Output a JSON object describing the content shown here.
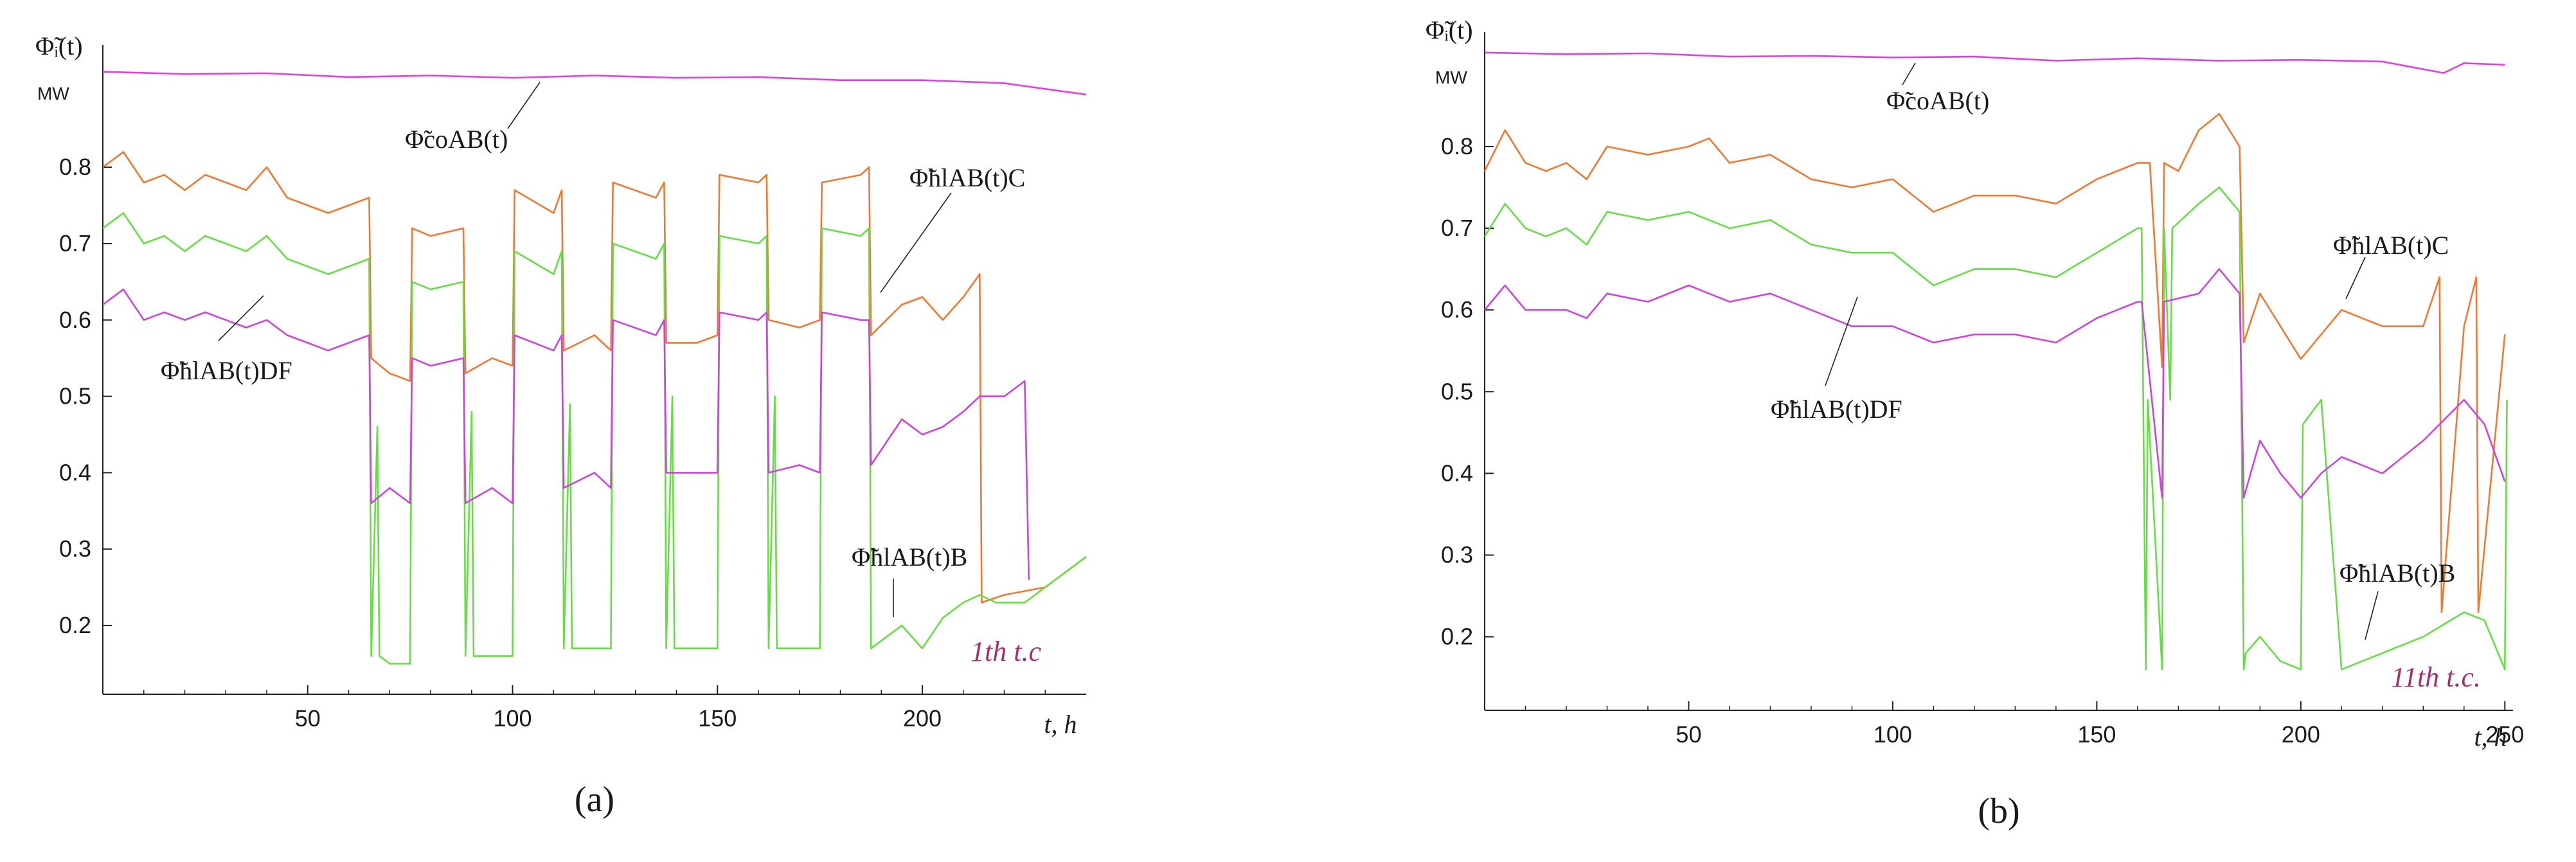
{
  "chart_data": [
    {
      "type": "line",
      "panel": "a",
      "caption": "(a)",
      "ylabel": "Φ̃ᵢ(t)",
      "yunit": "MW",
      "xlabel": "t,  h",
      "cycle_label": "1th t.c",
      "xlim": [
        0,
        240
      ],
      "ylim": [
        0.11,
        0.96
      ],
      "xticks": [
        50,
        100,
        150,
        200
      ],
      "yticks": [
        0.2,
        0.3,
        0.4,
        0.5,
        0.6,
        0.7,
        0.8
      ],
      "series": [
        {
          "name": "Φ̃coAB(t)",
          "color": "#e040e0",
          "x": [
            0,
            20,
            40,
            60,
            80,
            100,
            120,
            140,
            160,
            180,
            200,
            220,
            240
          ],
          "y": [
            0.925,
            0.922,
            0.923,
            0.918,
            0.92,
            0.917,
            0.92,
            0.917,
            0.918,
            0.914,
            0.914,
            0.91,
            0.895
          ]
        },
        {
          "name": "Φ̃hlAB(t)C",
          "color": "#f07830",
          "x": [
            0,
            5,
            10,
            15,
            20,
            25,
            30,
            35,
            40,
            45,
            50,
            55,
            60,
            65,
            65.5,
            70,
            75,
            75.5,
            80,
            88,
            88.5,
            95,
            100,
            100.5,
            110,
            112,
            112.5,
            120,
            124,
            124.5,
            135,
            137,
            137.5,
            145,
            150,
            150.5,
            160,
            162,
            162.5,
            170,
            175,
            175.5,
            185,
            187,
            187.5,
            195,
            200,
            205,
            210,
            214,
            214.5,
            220,
            230,
            240
          ],
          "y": [
            0.8,
            0.82,
            0.78,
            0.79,
            0.77,
            0.79,
            0.78,
            0.77,
            0.8,
            0.76,
            0.75,
            0.74,
            0.75,
            0.76,
            0.55,
            0.53,
            0.52,
            0.72,
            0.71,
            0.72,
            0.53,
            0.55,
            0.54,
            0.77,
            0.74,
            0.77,
            0.56,
            0.58,
            0.56,
            0.78,
            0.76,
            0.78,
            0.57,
            0.57,
            0.58,
            0.79,
            0.78,
            0.79,
            0.6,
            0.59,
            0.6,
            0.78,
            0.79,
            0.8,
            0.58,
            0.62,
            0.63,
            0.6,
            0.63,
            0.66,
            0.23,
            0.24,
            0.25,
            0.29
          ]
        },
        {
          "name": "Φ̃hlAB(t)B",
          "color": "#66dd44",
          "x": [
            0,
            5,
            10,
            15,
            20,
            25,
            30,
            35,
            40,
            45,
            50,
            55,
            60,
            65,
            65.5,
            67,
            67.5,
            70,
            75,
            75.5,
            80,
            88,
            88.5,
            90,
            90.5,
            95,
            100,
            100.5,
            110,
            112,
            112.5,
            114,
            114.5,
            120,
            124,
            124.5,
            135,
            137,
            137.5,
            139,
            139.5,
            145,
            150,
            150.5,
            160,
            162,
            162.5,
            164,
            164.5,
            170,
            175,
            175.5,
            185,
            187,
            187.5,
            195,
            200,
            205,
            210,
            214,
            218,
            225,
            230,
            240
          ],
          "y": [
            0.72,
            0.74,
            0.7,
            0.71,
            0.69,
            0.71,
            0.7,
            0.69,
            0.71,
            0.68,
            0.67,
            0.66,
            0.67,
            0.68,
            0.16,
            0.46,
            0.16,
            0.15,
            0.15,
            0.65,
            0.64,
            0.65,
            0.16,
            0.48,
            0.16,
            0.16,
            0.16,
            0.69,
            0.66,
            0.69,
            0.17,
            0.49,
            0.17,
            0.17,
            0.17,
            0.7,
            0.68,
            0.7,
            0.17,
            0.5,
            0.17,
            0.17,
            0.17,
            0.71,
            0.7,
            0.71,
            0.17,
            0.5,
            0.17,
            0.17,
            0.17,
            0.72,
            0.71,
            0.72,
            0.17,
            0.2,
            0.17,
            0.21,
            0.23,
            0.24,
            0.23,
            0.23,
            0.25,
            0.29
          ]
        },
        {
          "name": "Φ̃hlAB(t)DF",
          "color": "#cc44dd",
          "x": [
            0,
            5,
            10,
            15,
            20,
            25,
            30,
            35,
            40,
            45,
            50,
            55,
            60,
            65,
            65.5,
            70,
            75,
            75.5,
            80,
            88,
            88.5,
            95,
            100,
            100.5,
            110,
            112,
            112.5,
            120,
            124,
            124.5,
            135,
            137,
            137.5,
            145,
            150,
            150.5,
            160,
            162,
            162.5,
            170,
            175,
            175.5,
            185,
            187,
            187.5,
            195,
            200,
            205,
            210,
            214,
            220,
            225,
            226
          ],
          "y": [
            0.62,
            0.64,
            0.6,
            0.61,
            0.6,
            0.61,
            0.6,
            0.59,
            0.6,
            0.58,
            0.57,
            0.56,
            0.57,
            0.58,
            0.36,
            0.38,
            0.36,
            0.55,
            0.54,
            0.55,
            0.36,
            0.38,
            0.36,
            0.58,
            0.56,
            0.58,
            0.38,
            0.4,
            0.38,
            0.6,
            0.58,
            0.6,
            0.4,
            0.4,
            0.4,
            0.61,
            0.6,
            0.61,
            0.4,
            0.41,
            0.4,
            0.61,
            0.6,
            0.6,
            0.41,
            0.47,
            0.45,
            0.46,
            0.48,
            0.5,
            0.5,
            0.52,
            0.26
          ]
        }
      ],
      "annotations": [
        {
          "text": "Φ̃coAB(t)",
          "series": "Φ̃coAB(t)"
        },
        {
          "text": "Φ̃hlAB(t)C",
          "series": "Φ̃hlAB(t)C"
        },
        {
          "text": "Φ̃hlAB(t)DF",
          "series": "Φ̃hlAB(t)DF"
        },
        {
          "text": "Φ̃hlAB(t)B",
          "series": "Φ̃hlAB(t)B"
        }
      ]
    },
    {
      "type": "line",
      "panel": "b",
      "caption": "(b)",
      "ylabel": "Φ̃ᵢ(t)",
      "yunit": "MW",
      "xlabel": "t,  h",
      "cycle_label": "11th t.c.",
      "xlim": [
        0,
        252
      ],
      "ylim": [
        0.11,
        0.94
      ],
      "xticks": [
        50,
        100,
        150,
        200,
        250
      ],
      "yticks": [
        0.2,
        0.3,
        0.4,
        0.5,
        0.6,
        0.7,
        0.8
      ],
      "series": [
        {
          "name": "Φ̃coAB(t)",
          "color": "#e040e0",
          "x": [
            0,
            20,
            40,
            60,
            80,
            100,
            120,
            140,
            160,
            180,
            200,
            220,
            235,
            240,
            250
          ],
          "y": [
            0.915,
            0.913,
            0.914,
            0.91,
            0.911,
            0.909,
            0.91,
            0.905,
            0.908,
            0.905,
            0.906,
            0.904,
            0.89,
            0.902,
            0.9
          ]
        },
        {
          "name": "Φ̃hlAB(t)C",
          "color": "#f07830",
          "x": [
            0,
            5,
            10,
            15,
            20,
            25,
            30,
            40,
            50,
            55,
            60,
            70,
            80,
            90,
            100,
            110,
            120,
            130,
            140,
            150,
            160,
            161,
            163,
            166,
            166.5,
            170,
            175,
            180,
            185,
            186,
            190,
            195,
            200,
            210,
            220,
            230,
            234,
            234.5,
            240,
            243,
            243.5,
            250
          ],
          "y": [
            0.77,
            0.82,
            0.78,
            0.77,
            0.78,
            0.76,
            0.8,
            0.79,
            0.8,
            0.81,
            0.78,
            0.79,
            0.76,
            0.75,
            0.76,
            0.72,
            0.74,
            0.74,
            0.73,
            0.76,
            0.78,
            0.78,
            0.78,
            0.53,
            0.78,
            0.77,
            0.82,
            0.84,
            0.8,
            0.56,
            0.62,
            0.58,
            0.54,
            0.6,
            0.58,
            0.58,
            0.64,
            0.23,
            0.58,
            0.64,
            0.23,
            0.57
          ]
        },
        {
          "name": "Φ̃hlAB(t)B",
          "color": "#66dd44",
          "x": [
            0,
            5,
            10,
            15,
            20,
            25,
            30,
            40,
            50,
            60,
            70,
            80,
            90,
            100,
            110,
            120,
            130,
            140,
            150,
            160,
            161,
            162,
            162.5,
            166,
            166.5,
            168,
            168.5,
            175,
            180,
            185,
            186,
            186.5,
            190,
            195,
            200,
            200.5,
            205,
            210,
            220,
            230,
            240,
            245,
            250,
            250.5
          ],
          "y": [
            0.69,
            0.73,
            0.7,
            0.69,
            0.7,
            0.68,
            0.72,
            0.71,
            0.72,
            0.7,
            0.71,
            0.68,
            0.67,
            0.67,
            0.63,
            0.65,
            0.65,
            0.64,
            0.67,
            0.7,
            0.7,
            0.16,
            0.49,
            0.16,
            0.7,
            0.49,
            0.7,
            0.73,
            0.75,
            0.72,
            0.16,
            0.18,
            0.2,
            0.17,
            0.16,
            0.46,
            0.49,
            0.16,
            0.18,
            0.2,
            0.23,
            0.22,
            0.16,
            0.49
          ]
        },
        {
          "name": "Φ̃hlAB(t)DF",
          "color": "#cc44dd",
          "x": [
            0,
            5,
            10,
            15,
            20,
            25,
            30,
            40,
            50,
            60,
            70,
            80,
            90,
            100,
            110,
            120,
            130,
            140,
            150,
            160,
            161,
            166,
            166.5,
            175,
            180,
            185,
            186,
            190,
            195,
            200,
            205,
            210,
            220,
            230,
            240,
            245,
            250
          ],
          "y": [
            0.6,
            0.63,
            0.6,
            0.6,
            0.6,
            0.59,
            0.62,
            0.61,
            0.63,
            0.61,
            0.62,
            0.6,
            0.58,
            0.58,
            0.56,
            0.57,
            0.57,
            0.56,
            0.59,
            0.61,
            0.61,
            0.37,
            0.61,
            0.62,
            0.65,
            0.62,
            0.37,
            0.44,
            0.4,
            0.37,
            0.4,
            0.42,
            0.4,
            0.44,
            0.49,
            0.46,
            0.39
          ]
        }
      ],
      "annotations": [
        {
          "text": "Φ̃coAB(t)",
          "series": "Φ̃coAB(t)"
        },
        {
          "text": "Φ̃hlAB(t)C",
          "series": "Φ̃hlAB(t)C"
        },
        {
          "text": "Φ̃hlAB(t)DF",
          "series": "Φ̃hlAB(t)DF"
        },
        {
          "text": "Φ̃hlAB(t)B",
          "series": "Φ̃hlAB(t)B"
        }
      ]
    }
  ]
}
